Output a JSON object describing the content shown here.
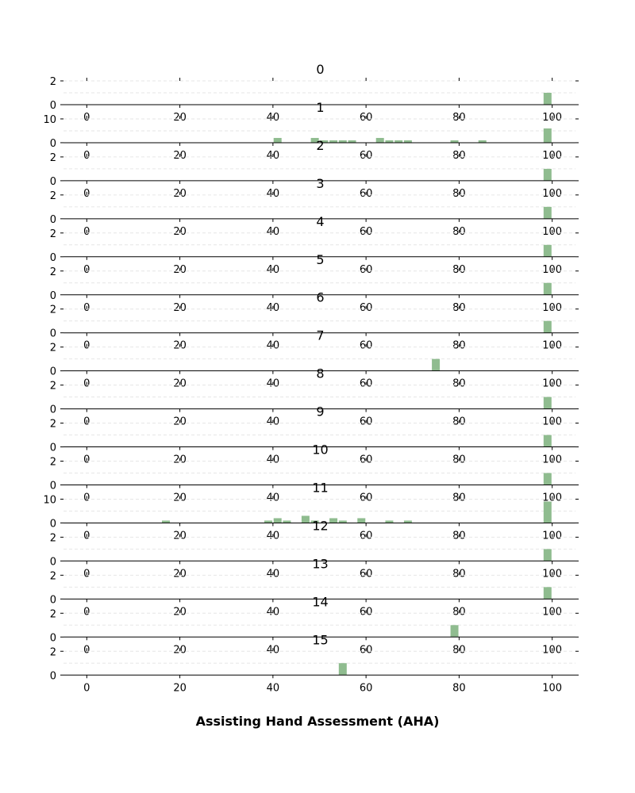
{
  "chart_data": {
    "type": "bar",
    "xlabel": "Assisting Hand Assessment (AHA)",
    "xlim": [
      -5,
      105
    ],
    "x_ticks": [
      0,
      20,
      40,
      60,
      80,
      100
    ],
    "bar_color": "#8fbc8f",
    "grid": "horizontal dashed",
    "panels": [
      {
        "title": "0",
        "ylim": [
          0,
          2
        ],
        "y_ticks": [
          0,
          2
        ],
        "x": [
          99
        ],
        "values": [
          1
        ]
      },
      {
        "title": "1",
        "ylim": [
          0,
          10
        ],
        "y_ticks": [
          0,
          10
        ],
        "x": [
          41,
          49,
          51,
          53,
          55,
          57,
          63,
          65,
          67,
          69,
          79,
          85,
          99
        ],
        "values": [
          2,
          2,
          1,
          1,
          1,
          1,
          2,
          1,
          1,
          1,
          1,
          1,
          6
        ]
      },
      {
        "title": "2",
        "ylim": [
          0,
          2
        ],
        "y_ticks": [
          0,
          2
        ],
        "x": [
          99
        ],
        "values": [
          1
        ]
      },
      {
        "title": "3",
        "ylim": [
          0,
          2
        ],
        "y_ticks": [
          0,
          2
        ],
        "x": [
          99
        ],
        "values": [
          1
        ]
      },
      {
        "title": "4",
        "ylim": [
          0,
          2
        ],
        "y_ticks": [
          0,
          2
        ],
        "x": [
          99
        ],
        "values": [
          1
        ]
      },
      {
        "title": "5",
        "ylim": [
          0,
          2
        ],
        "y_ticks": [
          0,
          2
        ],
        "x": [
          99
        ],
        "values": [
          1
        ]
      },
      {
        "title": "6",
        "ylim": [
          0,
          2
        ],
        "y_ticks": [
          0,
          2
        ],
        "x": [
          99
        ],
        "values": [
          1
        ]
      },
      {
        "title": "7",
        "ylim": [
          0,
          2
        ],
        "y_ticks": [
          0,
          2
        ],
        "x": [
          75
        ],
        "values": [
          1
        ]
      },
      {
        "title": "8",
        "ylim": [
          0,
          2
        ],
        "y_ticks": [
          0,
          2
        ],
        "x": [
          99
        ],
        "values": [
          1
        ]
      },
      {
        "title": "9",
        "ylim": [
          0,
          2
        ],
        "y_ticks": [
          0,
          2
        ],
        "x": [
          99
        ],
        "values": [
          1
        ]
      },
      {
        "title": "10",
        "ylim": [
          0,
          2
        ],
        "y_ticks": [
          0,
          2
        ],
        "x": [
          99
        ],
        "values": [
          1
        ]
      },
      {
        "title": "11",
        "ylim": [
          0,
          10
        ],
        "y_ticks": [
          0,
          10
        ],
        "x": [
          17,
          39,
          41,
          43,
          47,
          49,
          53,
          55,
          59,
          65,
          69,
          99
        ],
        "values": [
          1,
          1,
          2,
          1,
          3,
          1,
          2,
          1,
          2,
          1,
          1,
          9
        ]
      },
      {
        "title": "12",
        "ylim": [
          0,
          2
        ],
        "y_ticks": [
          0,
          2
        ],
        "x": [
          99
        ],
        "values": [
          1
        ]
      },
      {
        "title": "13",
        "ylim": [
          0,
          2
        ],
        "y_ticks": [
          0,
          2
        ],
        "x": [
          99
        ],
        "values": [
          1
        ]
      },
      {
        "title": "14",
        "ylim": [
          0,
          2
        ],
        "y_ticks": [
          0,
          2
        ],
        "x": [
          79
        ],
        "values": [
          1
        ]
      },
      {
        "title": "15",
        "ylim": [
          0,
          2
        ],
        "y_ticks": [
          0,
          2
        ],
        "x": [
          55
        ],
        "values": [
          1
        ]
      }
    ]
  }
}
